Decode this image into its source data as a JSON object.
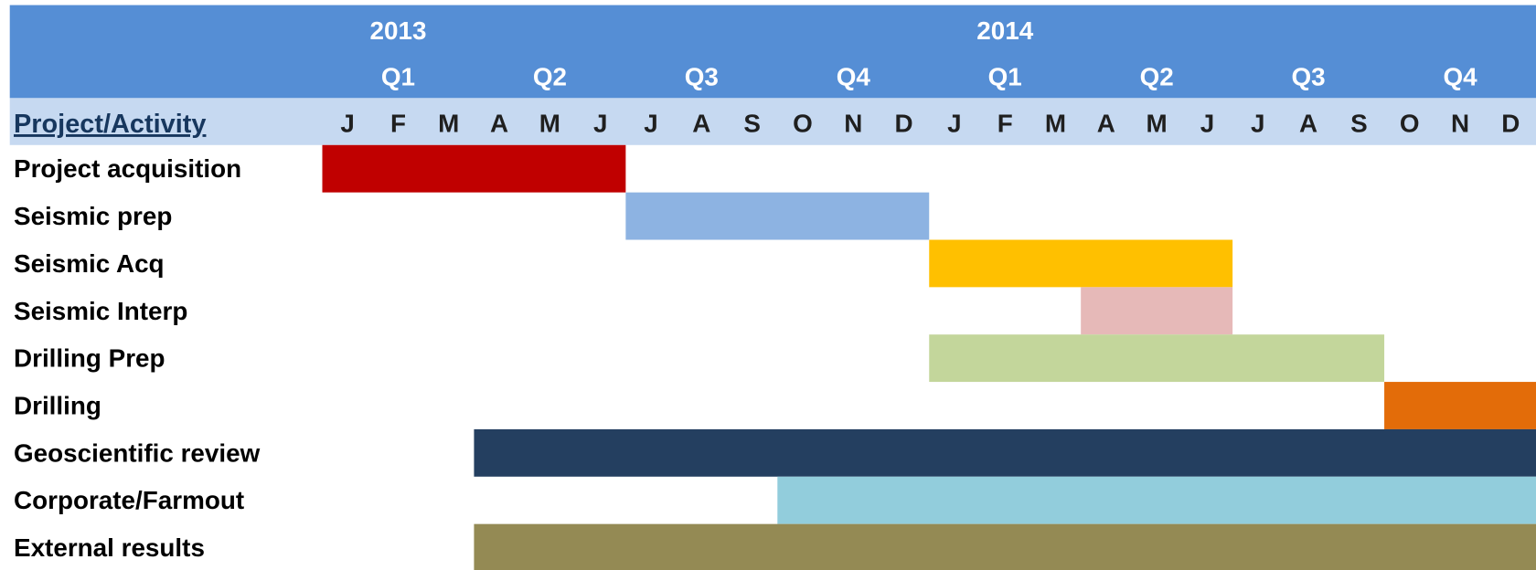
{
  "chart_data": {
    "type": "gantt",
    "column_header": "Project/Activity",
    "years": [
      "2013",
      "2014"
    ],
    "quarters": [
      "Q1",
      "Q2",
      "Q3",
      "Q4",
      "Q1",
      "Q2",
      "Q3",
      "Q4"
    ],
    "months": [
      "J",
      "F",
      "M",
      "A",
      "M",
      "J",
      "J",
      "A",
      "S",
      "O",
      "N",
      "D",
      "J",
      "F",
      "M",
      "A",
      "M",
      "J",
      "J",
      "A",
      "S",
      "O",
      "N",
      "D"
    ],
    "tasks": [
      {
        "name": "Project acquisition",
        "start": 0,
        "end": 6,
        "color": "#c00000"
      },
      {
        "name": "Seismic prep",
        "start": 6,
        "end": 12,
        "color": "#8db3e2"
      },
      {
        "name": "Seismic Acq",
        "start": 12,
        "end": 18,
        "color": "#ffc000"
      },
      {
        "name": "Seismic Interp",
        "start": 15,
        "end": 18,
        "color": "#e6b9b8"
      },
      {
        "name": "Drilling Prep",
        "start": 12,
        "end": 21,
        "color": "#c3d69b"
      },
      {
        "name": "Drilling",
        "start": 21,
        "end": 24,
        "color": "#e36c09"
      },
      {
        "name": "Geoscientific review",
        "start": 3,
        "end": 24,
        "color": "#243f60"
      },
      {
        "name": "Corporate/Farmout",
        "start": 9,
        "end": 24,
        "color": "#92cddc"
      },
      {
        "name": "External results",
        "start": 3,
        "end": 24,
        "color": "#948a54"
      }
    ]
  }
}
